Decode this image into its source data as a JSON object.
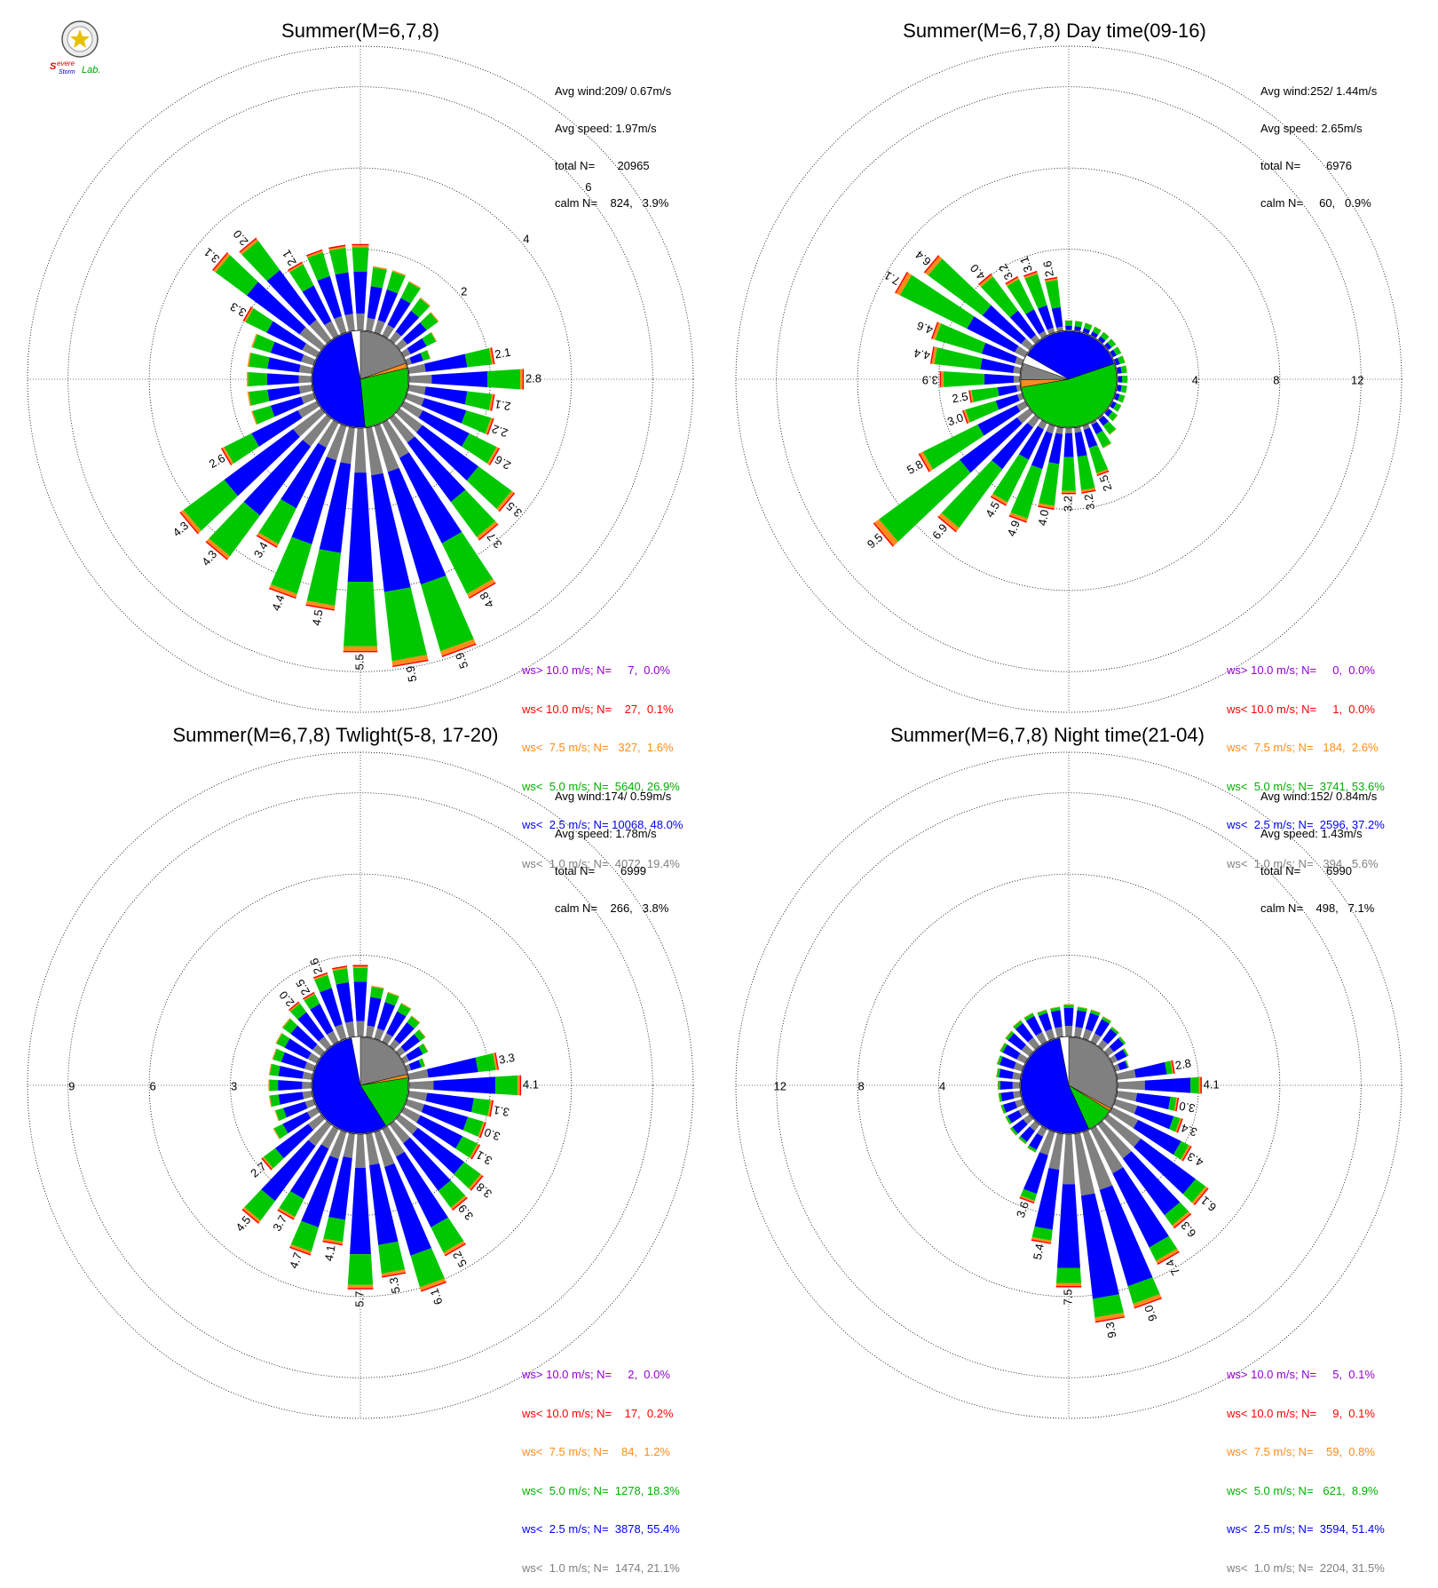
{
  "colors": {
    "gt10": "#9400d3",
    "lt10": "#ff0000",
    "lt7_5": "#ff8c1a",
    "lt5": "#00c800",
    "lt2_5": "#0000ff",
    "lt1": "#808080"
  },
  "logo": {
    "text_top": "Severe",
    "text_bottom": "Storm",
    "text_lab": "Lab."
  },
  "panels": [
    {
      "title": "Summer(M=6,7,8)",
      "stats": {
        "avg_wind": "Avg wind:209/ 0.67m/s",
        "avg_speed": "Avg speed: 1.97m/s",
        "total": "total N=       20965",
        "calm": "calm N=    824,   3.9%"
      },
      "legend": [
        "ws> 10.0 m/s; N=     7,  0.0%",
        "ws< 10.0 m/s; N=    27,  0.1%",
        "ws<  7.5 m/s; N=   327,  1.6%",
        "ws<  5.0 m/s; N=  5640, 26.9%",
        "ws<  2.5 m/s; N= 10068, 48.0%",
        "ws<  1.0 m/s; N=  4072, 19.4%"
      ],
      "ring_labels": [
        "2",
        "4",
        "6"
      ],
      "dir_labels": [
        "2.1",
        "2.8",
        "2.1",
        "2.2",
        "2.6",
        "3.5",
        "3.7",
        "4.8",
        "5.9",
        "5.9",
        "5.5",
        "4.5",
        "4.4",
        "3.4",
        "4.3",
        "4.3",
        "2.6",
        "3.3",
        "3.1",
        "2.0",
        "2.1"
      ]
    },
    {
      "title": "Summer(M=6,7,8) Day time(09-16)",
      "stats": {
        "avg_wind": "Avg wind:252/ 1.44m/s",
        "avg_speed": "Avg speed: 2.65m/s",
        "total": "total N=        6976",
        "calm": "calm N=     60,   0.9%"
      },
      "legend": [
        "ws> 10.0 m/s; N=     0,  0.0%",
        "ws< 10.0 m/s; N=     1,  0.0%",
        "ws<  7.5 m/s; N=   184,  2.6%",
        "ws<  5.0 m/s; N=  3741, 53.6%",
        "ws<  2.5 m/s; N=  2596, 37.2%",
        "ws<  1.0 m/s; N=   394,  5.6%"
      ],
      "ring_labels": [
        "4",
        "8",
        "12"
      ],
      "dir_labels": [
        "2.5",
        "3.2",
        "3.2",
        "4.0",
        "4.9",
        "4.5",
        "6.9",
        "9.5",
        "5.8",
        "3.0",
        "2.5",
        "3.9",
        "4.4",
        "4.6",
        "7.1",
        "6.4",
        "4.0",
        "3.2",
        "3.1",
        "2.6"
      ]
    },
    {
      "title": "Summer(M=6,7,8) Twlight(5-8, 17-20)",
      "stats": {
        "avg_wind": "Avg wind:174/ 0.59m/s",
        "avg_speed": "Avg speed: 1.78m/s",
        "total": "total N=        6999",
        "calm": "calm N=    266,   3.8%"
      },
      "legend": [
        "ws> 10.0 m/s; N=     2,  0.0%",
        "ws< 10.0 m/s; N=    17,  0.2%",
        "ws<  7.5 m/s; N=    84,  1.2%",
        "ws<  5.0 m/s; N=  1278, 18.3%",
        "ws<  2.5 m/s; N=  3878, 55.4%",
        "ws<  1.0 m/s; N=  1474, 21.1%"
      ],
      "ring_labels": [
        "3",
        "6",
        "9"
      ],
      "dir_labels": [
        "3.3",
        "4.1",
        "3.1",
        "3.0",
        "3.1",
        "3.8",
        "3.9",
        "5.2",
        "6.1",
        "5.3",
        "5.7",
        "4.1",
        "4.7",
        "3.7",
        "4.5",
        "2.7",
        "2.0",
        "2.5",
        "2.6"
      ]
    },
    {
      "title": "Summer(M=6,7,8) Night time(21-04)",
      "stats": {
        "avg_wind": "Avg wind:152/ 0.84m/s",
        "avg_speed": "Avg speed: 1.43m/s",
        "total": "total N=        6990",
        "calm": "calm N=    498,   7.1%"
      },
      "legend": [
        "ws> 10.0 m/s; N=     5,  0.1%",
        "ws< 10.0 m/s; N=     9,  0.1%",
        "ws<  7.5 m/s; N=    59,  0.8%",
        "ws<  5.0 m/s; N=   621,  8.9%",
        "ws<  2.5 m/s; N=  3594, 51.4%",
        "ws<  1.0 m/s; N=  2204, 31.5%"
      ],
      "ring_labels": [
        "4",
        "8",
        "12"
      ],
      "dir_labels": [
        "2.8",
        "4.1",
        "3.0",
        "3.4",
        "4.3",
        "6.1",
        "6.3",
        "7.4",
        "9.0",
        "9.3",
        "7.5",
        "5.4",
        "3.6"
      ]
    }
  ],
  "chart_data": [
    {
      "type": "wind-rose",
      "title": "Summer(M=6,7,8)",
      "r_max": 7,
      "r_ticks": [
        2,
        4,
        6
      ],
      "directions_deg": [
        0,
        10,
        20,
        30,
        40,
        50,
        60,
        70,
        80,
        90,
        100,
        110,
        120,
        130,
        140,
        150,
        160,
        170,
        180,
        190,
        200,
        210,
        220,
        230,
        240,
        250,
        260,
        270,
        280,
        290,
        300,
        310,
        320,
        330,
        340,
        350
      ],
      "totals": [
        2.1,
        1.6,
        1.6,
        1.5,
        1.3,
        1.2,
        0.9,
        0.6,
        2.1,
        2.8,
        2.1,
        2.2,
        2.6,
        3.5,
        3.7,
        4.8,
        5.9,
        5.9,
        5.5,
        4.5,
        4.4,
        3.4,
        4.3,
        4.3,
        2.6,
        1.6,
        1.6,
        1.6,
        1.6,
        1.6,
        2.0,
        3.3,
        3.1,
        2.0,
        2.1,
        2.1
      ],
      "calm_pie": {
        "lt1": 19.4,
        "lt2_5": 48.0,
        "lt5": 26.9,
        "lt7_5": 1.6
      }
    },
    {
      "type": "wind-rose",
      "title": "Summer(M=6,7,8) Day time(09-16)",
      "r_max": 14,
      "r_ticks": [
        4,
        8,
        12
      ],
      "directions_deg": [
        0,
        10,
        20,
        30,
        40,
        50,
        60,
        70,
        80,
        90,
        100,
        110,
        120,
        130,
        140,
        150,
        160,
        170,
        180,
        190,
        200,
        210,
        220,
        230,
        240,
        250,
        260,
        270,
        280,
        290,
        300,
        310,
        320,
        330,
        340,
        350
      ],
      "totals": [
        0.5,
        0.5,
        0.5,
        0.5,
        0.5,
        0.5,
        0.5,
        0.5,
        0.5,
        0.5,
        0.5,
        0.5,
        0.5,
        0.6,
        1.0,
        1.4,
        2.5,
        3.2,
        3.2,
        4.0,
        4.9,
        4.5,
        6.9,
        9.5,
        5.8,
        3.0,
        2.5,
        3.9,
        4.4,
        4.6,
        7.1,
        6.4,
        4.0,
        3.2,
        3.1,
        2.6
      ],
      "calm_pie": {
        "lt1": 5.6,
        "lt2_5": 37.2,
        "lt5": 53.6,
        "lt7_5": 2.6
      }
    },
    {
      "type": "wind-rose",
      "title": "Summer(M=6,7,8) Twlight(5-8, 17-20)",
      "r_max": 10.5,
      "r_ticks": [
        3,
        6,
        9
      ],
      "directions_deg": [
        0,
        10,
        20,
        30,
        40,
        50,
        60,
        70,
        80,
        90,
        100,
        110,
        120,
        130,
        140,
        150,
        160,
        170,
        180,
        190,
        200,
        210,
        220,
        230,
        240,
        250,
        260,
        270,
        280,
        290,
        300,
        310,
        320,
        330,
        340,
        350
      ],
      "totals": [
        2.6,
        1.9,
        1.8,
        1.6,
        1.4,
        1.2,
        1.0,
        0.7,
        3.3,
        4.1,
        3.1,
        3.0,
        3.1,
        3.8,
        3.9,
        5.2,
        6.1,
        5.3,
        5.7,
        4.1,
        4.7,
        3.7,
        4.5,
        2.7,
        1.8,
        1.5,
        1.6,
        1.6,
        1.6,
        1.6,
        1.7,
        1.8,
        2.0,
        2.0,
        2.5,
        2.6
      ],
      "calm_pie": {
        "lt1": 21.1,
        "lt2_5": 55.4,
        "lt5": 18.3,
        "lt7_5": 1.2
      }
    },
    {
      "type": "wind-rose",
      "title": "Summer(M=6,7,8) Night time(21-04)",
      "r_max": 14,
      "r_ticks": [
        4,
        8,
        12
      ],
      "directions_deg": [
        0,
        10,
        20,
        30,
        40,
        50,
        60,
        70,
        80,
        90,
        100,
        110,
        120,
        130,
        140,
        150,
        160,
        170,
        180,
        190,
        200,
        210,
        220,
        230,
        240,
        250,
        260,
        270,
        280,
        290,
        300,
        310,
        320,
        330,
        340,
        350
      ],
      "totals": [
        1.6,
        1.5,
        1.5,
        1.4,
        1.2,
        1.1,
        0.9,
        0.7,
        2.8,
        4.1,
        3.0,
        3.4,
        4.3,
        6.1,
        6.3,
        7.4,
        9.0,
        9.3,
        7.5,
        5.4,
        3.6,
        1.3,
        1.2,
        1.2,
        1.1,
        1.1,
        1.1,
        1.1,
        1.2,
        1.3,
        1.4,
        1.5,
        1.6,
        1.6,
        1.5,
        1.5
      ],
      "calm_pie": {
        "lt1": 31.5,
        "lt2_5": 51.4,
        "lt5": 8.9,
        "lt7_5": 0.8
      }
    }
  ]
}
